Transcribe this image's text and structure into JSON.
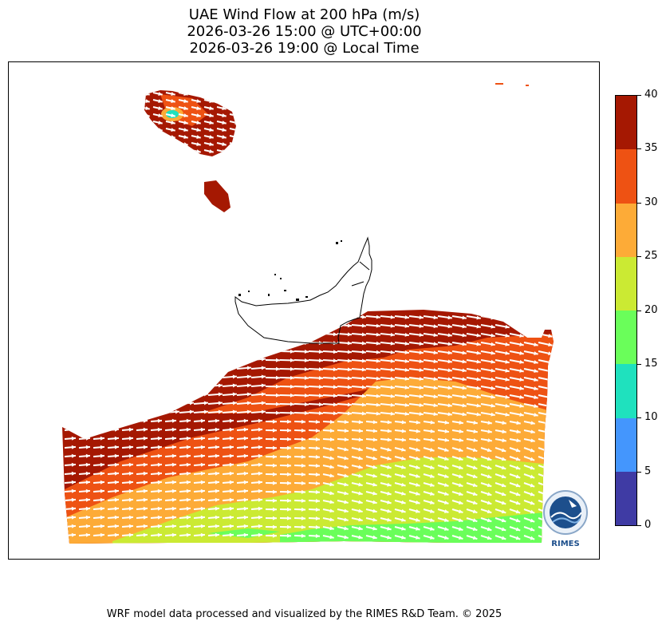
{
  "title": {
    "line1": "UAE Wind Flow at 200 hPa (m/s)",
    "line2": "2026-03-26 15:00 @ UTC+00:00",
    "line3": "2026-03-26 19:00 @ Local Time"
  },
  "colorbar": {
    "min": 0,
    "max": 40,
    "ticks": [
      "0",
      "5",
      "10",
      "15",
      "20",
      "25",
      "30",
      "35",
      "40"
    ],
    "colors": [
      "#3f3ba4",
      "#4496fd",
      "#1fe1be",
      "#6afe5a",
      "#cbea33",
      "#fdab37",
      "#ee5213",
      "#a51802"
    ]
  },
  "chart_data": {
    "type": "heatmap",
    "variable": "wind speed",
    "units": "m/s",
    "level": "200 hPa",
    "vector_direction": "westerly, flowing west to east, turning slightly southeast over the eastern half",
    "value_range": [
      0,
      40
    ],
    "bands": [
      {
        "range": "35-40",
        "color": "#a51802"
      },
      {
        "range": "30-35",
        "color": "#ee5213"
      },
      {
        "range": "25-30",
        "color": "#fdab37"
      },
      {
        "range": "20-25",
        "color": "#cbea33"
      },
      {
        "range": "15-20",
        "color": "#6afe5a"
      }
    ]
  },
  "logo": {
    "text": "RIMES"
  },
  "footer": "WRF model data processed and visualized by the RIMES R&D Team. © 2025"
}
